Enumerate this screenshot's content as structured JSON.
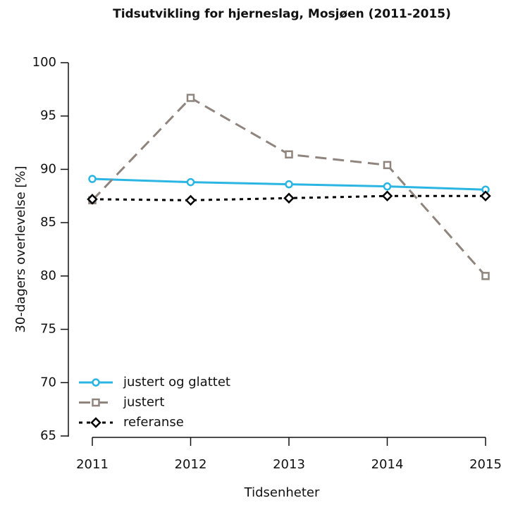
{
  "chart_data": {
    "type": "line",
    "title": "Tidsutvikling for hjerneslag, Mosjøen (2011-2015)",
    "x_label": "Tidsenheter",
    "y_label": "30-dagers overlevelse [%]",
    "x": [
      2011,
      2012,
      2013,
      2014,
      2015
    ],
    "xlim": [
      2011,
      2015
    ],
    "xticks": [
      2011,
      2012,
      2013,
      2014,
      2015
    ],
    "ylim": [
      65,
      100
    ],
    "yticks": [
      65,
      70,
      75,
      80,
      85,
      90,
      95,
      100
    ],
    "legend": "bottom-left",
    "series": [
      {
        "name": "justert og glattet",
        "color": "#2bb5e2",
        "marker": "circle",
        "dash": "solid",
        "values": [
          89.1,
          88.8,
          88.6,
          88.4,
          88.1
        ]
      },
      {
        "name": "justert",
        "color": "#8f857e",
        "marker": "square",
        "dash": "long",
        "values": [
          87.1,
          96.7,
          91.4,
          90.4,
          80.0
        ]
      },
      {
        "name": "referanse",
        "color": "#000000",
        "marker": "diamond",
        "dash": "dotted",
        "values": [
          87.2,
          87.1,
          87.3,
          87.5,
          87.5
        ]
      }
    ]
  }
}
